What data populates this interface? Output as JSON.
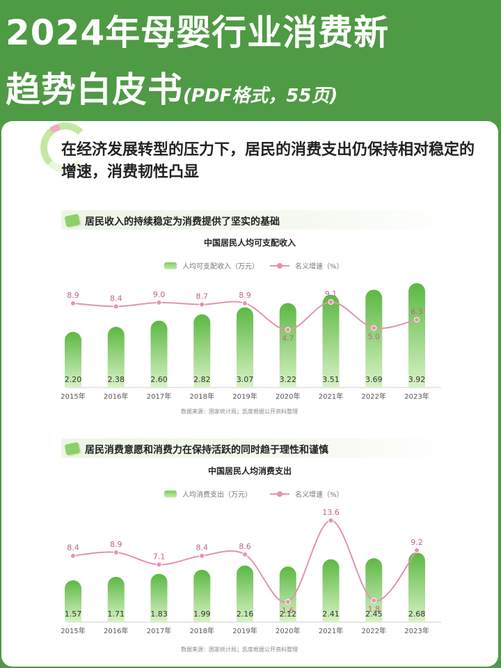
{
  "header": {
    "title_line1": "2024年母婴行业消费新",
    "title_line2": "趋势白皮书",
    "title_suffix": "(PDF格式，55页)"
  },
  "card": {
    "heading": "在经济发展转型的压力下，居民的消费支出仍保持相对稳定的增速，消费韧性凸显"
  },
  "colors": {
    "bar": "#5cb843",
    "line": "#e592ad",
    "header_bg": "#4f9a45"
  },
  "chart_data": [
    {
      "type": "bar",
      "section_title": "居民收入的持续稳定为消费提供了坚实的基础",
      "title": "中国居民人均可支配收入",
      "categories": [
        "2015年",
        "2016年",
        "2017年",
        "2018年",
        "2019年",
        "2020年",
        "2021年",
        "2022年",
        "2023年"
      ],
      "series": [
        {
          "name": "人均可支配收入（万元）",
          "type": "bar",
          "values": [
            2.2,
            2.38,
            2.6,
            2.82,
            3.07,
            3.22,
            3.51,
            3.69,
            3.92
          ]
        },
        {
          "name": "名义增速（%）",
          "type": "line",
          "values": [
            8.9,
            8.4,
            9.0,
            8.7,
            8.9,
            4.7,
            9.1,
            5.0,
            6.3
          ]
        }
      ],
      "source": "数据来源：国家统计局；凯度根据公开资料整理",
      "legend_position": "top",
      "grid": false
    },
    {
      "type": "bar",
      "section_title": "居民消费意愿和消费力在保持活跃的同时趋于理性和谨慎",
      "title": "中国居民人均消费支出",
      "categories": [
        "2015年",
        "2016年",
        "2017年",
        "2018年",
        "2019年",
        "2020年",
        "2021年",
        "2022年",
        "2023年"
      ],
      "series": [
        {
          "name": "人均消费支出（万元）",
          "type": "bar",
          "values": [
            1.57,
            1.71,
            1.83,
            1.99,
            2.16,
            2.12,
            2.41,
            2.45,
            2.68
          ]
        },
        {
          "name": "名义增速（%）",
          "type": "line",
          "values": [
            8.4,
            8.9,
            7.1,
            8.4,
            8.6,
            1.6,
            13.6,
            1.8,
            9.2
          ]
        }
      ],
      "source": "数据来源：国家统计局；凯度根据公开资料整理",
      "legend_position": "top",
      "grid": false
    }
  ]
}
